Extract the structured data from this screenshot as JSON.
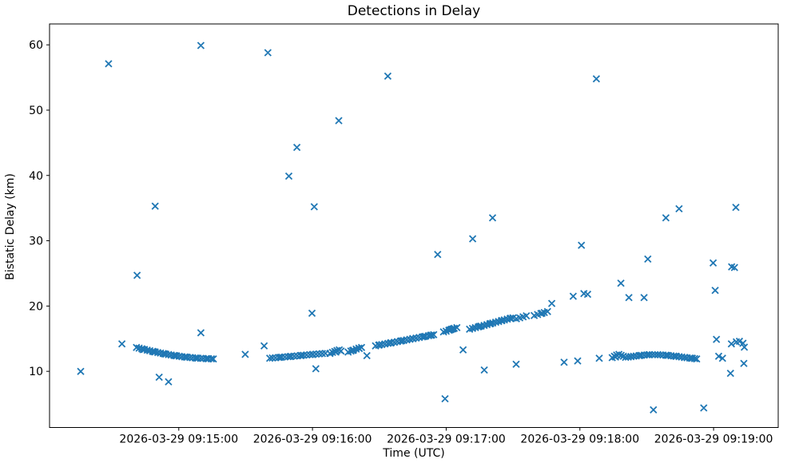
{
  "figure": {
    "title": "Detections in Delay",
    "xlabel": "Time (UTC)",
    "ylabel": "Bistatic Delay (km)"
  },
  "chart_data": {
    "type": "scatter",
    "title": "Detections in Delay",
    "xlabel": "Time (UTC)",
    "ylabel": "Bistatic Delay (km)",
    "marker": "x",
    "marker_color": "#1f77b4",
    "axis_color": "#000000",
    "grid": false,
    "legend": "none",
    "x_unit": "seconds after 2026-03-29 09:14:00 UTC",
    "xlim": [
      2,
      329
    ],
    "ylim": [
      1.4,
      63.2
    ],
    "x_ticks": [
      {
        "value": 60,
        "label": "2026-03-29 09:15:00"
      },
      {
        "value": 120,
        "label": "2026-03-29 09:16:00"
      },
      {
        "value": 180,
        "label": "2026-03-29 09:17:00"
      },
      {
        "value": 240,
        "label": "2026-03-29 09:18:00"
      },
      {
        "value": 300,
        "label": "2026-03-29 09:19:00"
      }
    ],
    "y_ticks": [
      10,
      20,
      30,
      40,
      50,
      60
    ],
    "points": [
      [
        16.0,
        10.0
      ],
      [
        28.5,
        57.1
      ],
      [
        34.5,
        14.2
      ],
      [
        41.0,
        13.65
      ],
      [
        42.2,
        13.55
      ],
      [
        43.4,
        13.45
      ],
      [
        44.0,
        13.32
      ],
      [
        44.6,
        13.35
      ],
      [
        45.8,
        13.25
      ],
      [
        47.0,
        13.15
      ],
      [
        48.2,
        13.06
      ],
      [
        48.8,
        13.0
      ],
      [
        49.4,
        12.97
      ],
      [
        50.6,
        12.88
      ],
      [
        51.8,
        12.8
      ],
      [
        53.0,
        12.72
      ],
      [
        53.6,
        12.68
      ],
      [
        54.2,
        12.64
      ],
      [
        55.4,
        12.57
      ],
      [
        56.6,
        12.5
      ],
      [
        57.8,
        12.43
      ],
      [
        58.4,
        12.4
      ],
      [
        59.0,
        12.37
      ],
      [
        60.2,
        12.31
      ],
      [
        61.4,
        12.26
      ],
      [
        62.6,
        12.21
      ],
      [
        63.2,
        12.18
      ],
      [
        63.8,
        12.16
      ],
      [
        65.0,
        12.12
      ],
      [
        66.2,
        12.08
      ],
      [
        67.4,
        12.05
      ],
      [
        68.0,
        12.03
      ],
      [
        68.6,
        12.02
      ],
      [
        69.8,
        11.99
      ],
      [
        71.0,
        11.97
      ],
      [
        72.2,
        11.95
      ],
      [
        72.8,
        11.94
      ],
      [
        73.4,
        11.93
      ],
      [
        74.6,
        11.92
      ],
      [
        75.5,
        11.9
      ],
      [
        41.3,
        24.7
      ],
      [
        49.4,
        35.3
      ],
      [
        51.2,
        9.1
      ],
      [
        55.4,
        8.4
      ],
      [
        69.9,
        59.9
      ],
      [
        69.9,
        15.9
      ],
      [
        89.8,
        12.6
      ],
      [
        98.3,
        13.9
      ],
      [
        100.0,
        58.8
      ],
      [
        100.8,
        12.0
      ],
      [
        102.0,
        12.05
      ],
      [
        103.4,
        12.09
      ],
      [
        104.8,
        12.13
      ],
      [
        105.5,
        12.15
      ],
      [
        106.2,
        12.17
      ],
      [
        107.6,
        12.21
      ],
      [
        109.0,
        12.25
      ],
      [
        110.0,
        12.27
      ],
      [
        110.4,
        12.29
      ],
      [
        111.8,
        12.33
      ],
      [
        113.2,
        12.38
      ],
      [
        114.6,
        12.42
      ],
      [
        115.0,
        12.44
      ],
      [
        116.0,
        12.46
      ],
      [
        117.4,
        12.51
      ],
      [
        118.8,
        12.55
      ],
      [
        120.0,
        12.58
      ],
      [
        120.2,
        12.6
      ],
      [
        121.6,
        12.64
      ],
      [
        123.0,
        12.68
      ],
      [
        124.4,
        12.72
      ],
      [
        125.8,
        12.76
      ],
      [
        109.4,
        39.9
      ],
      [
        113.0,
        44.3
      ],
      [
        119.8,
        18.9
      ],
      [
        120.8,
        35.2
      ],
      [
        121.5,
        10.4
      ],
      [
        127.8,
        12.75
      ],
      [
        129.0,
        12.9
      ],
      [
        130.0,
        13.05
      ],
      [
        130.5,
        12.95
      ],
      [
        131.0,
        13.2
      ],
      [
        132.0,
        13.3
      ],
      [
        132.8,
        13.1
      ],
      [
        131.8,
        48.4
      ],
      [
        136.0,
        12.95
      ],
      [
        137.2,
        13.1
      ],
      [
        138.0,
        13.2
      ],
      [
        138.4,
        13.25
      ],
      [
        139.6,
        13.4
      ],
      [
        140.8,
        13.55
      ],
      [
        141.0,
        13.5
      ],
      [
        142.0,
        13.65
      ],
      [
        144.4,
        12.4
      ],
      [
        148.3,
        13.9
      ],
      [
        149.7,
        14.0
      ],
      [
        150.0,
        14.05
      ],
      [
        151.1,
        14.1
      ],
      [
        152.5,
        14.19
      ],
      [
        153.9,
        14.28
      ],
      [
        155.0,
        14.35
      ],
      [
        155.3,
        14.37
      ],
      [
        156.7,
        14.46
      ],
      [
        158.1,
        14.55
      ],
      [
        159.5,
        14.64
      ],
      [
        160.0,
        14.68
      ],
      [
        160.9,
        14.73
      ],
      [
        162.3,
        14.82
      ],
      [
        163.7,
        14.91
      ],
      [
        165.0,
        15.02
      ],
      [
        165.1,
        15.0
      ],
      [
        166.5,
        15.09
      ],
      [
        167.9,
        15.18
      ],
      [
        169.3,
        15.27
      ],
      [
        170.0,
        15.33
      ],
      [
        170.7,
        15.37
      ],
      [
        172.1,
        15.46
      ],
      [
        173.0,
        15.52
      ],
      [
        173.5,
        15.55
      ],
      [
        174.4,
        15.62
      ],
      [
        153.8,
        55.2
      ],
      [
        176.2,
        27.9
      ],
      [
        179.5,
        5.8
      ],
      [
        178.8,
        16.05
      ],
      [
        180.0,
        16.15
      ],
      [
        181.2,
        16.3
      ],
      [
        181.8,
        16.35
      ],
      [
        182.4,
        16.45
      ],
      [
        183.0,
        16.5
      ],
      [
        183.6,
        16.6
      ],
      [
        184.8,
        16.7
      ],
      [
        187.6,
        13.3
      ],
      [
        191.9,
        30.3
      ],
      [
        190.5,
        16.45
      ],
      [
        191.8,
        16.57
      ],
      [
        193.1,
        16.69
      ],
      [
        194.4,
        16.81
      ],
      [
        195.0,
        16.9
      ],
      [
        195.7,
        16.93
      ],
      [
        197.0,
        17.04
      ],
      [
        198.3,
        17.16
      ],
      [
        199.6,
        17.28
      ],
      [
        200.0,
        17.33
      ],
      [
        200.9,
        17.4
      ],
      [
        202.2,
        17.52
      ],
      [
        203.5,
        17.63
      ],
      [
        204.8,
        17.75
      ],
      [
        205.0,
        17.78
      ],
      [
        206.1,
        17.87
      ],
      [
        207.4,
        17.99
      ],
      [
        208.7,
        18.1
      ],
      [
        209.0,
        18.14
      ],
      [
        210.0,
        18.2
      ],
      [
        197.1,
        10.2
      ],
      [
        200.8,
        33.5
      ],
      [
        211.5,
        18.05
      ],
      [
        213.0,
        18.2
      ],
      [
        214.5,
        18.35
      ],
      [
        216.0,
        18.5
      ],
      [
        219.5,
        18.55
      ],
      [
        221.0,
        18.7
      ],
      [
        222.5,
        18.85
      ],
      [
        223.0,
        18.9
      ],
      [
        224.0,
        19.0
      ],
      [
        225.5,
        19.15
      ],
      [
        211.4,
        11.1
      ],
      [
        227.4,
        20.4
      ],
      [
        232.9,
        11.4
      ],
      [
        237.0,
        21.5
      ],
      [
        239.0,
        11.6
      ],
      [
        240.7,
        29.3
      ],
      [
        241.8,
        21.9
      ],
      [
        243.5,
        21.8
      ],
      [
        247.4,
        54.8
      ],
      [
        248.7,
        12.0
      ],
      [
        254.5,
        12.1
      ],
      [
        255.5,
        12.3
      ],
      [
        256.0,
        12.2
      ],
      [
        256.5,
        12.5
      ],
      [
        257.5,
        12.6
      ],
      [
        258.5,
        12.45
      ],
      [
        259.5,
        12.3
      ],
      [
        260.5,
        12.15
      ],
      [
        261.7,
        12.2
      ],
      [
        262.9,
        12.25
      ],
      [
        263.0,
        12.27
      ],
      [
        264.1,
        12.3
      ],
      [
        265.3,
        12.35
      ],
      [
        266.5,
        12.4
      ],
      [
        267.0,
        12.43
      ],
      [
        267.7,
        12.45
      ],
      [
        268.9,
        12.5
      ],
      [
        270.1,
        12.53
      ],
      [
        271.0,
        12.54
      ],
      [
        271.3,
        12.55
      ],
      [
        272.5,
        12.56
      ],
      [
        273.7,
        12.56
      ],
      [
        274.9,
        12.55
      ],
      [
        275.0,
        12.54
      ],
      [
        276.1,
        12.53
      ],
      [
        277.3,
        12.5
      ],
      [
        278.5,
        12.47
      ],
      [
        279.0,
        12.45
      ],
      [
        279.7,
        12.43
      ],
      [
        280.9,
        12.39
      ],
      [
        282.1,
        12.34
      ],
      [
        283.0,
        12.31
      ],
      [
        283.3,
        12.29
      ],
      [
        284.5,
        12.24
      ],
      [
        285.7,
        12.19
      ],
      [
        286.9,
        12.14
      ],
      [
        287.0,
        12.13
      ],
      [
        288.1,
        12.09
      ],
      [
        289.3,
        12.04
      ],
      [
        290.0,
        12.01
      ],
      [
        290.5,
        12.0
      ],
      [
        291.5,
        11.95
      ],
      [
        292.4,
        11.9
      ],
      [
        258.4,
        23.5
      ],
      [
        262.0,
        21.3
      ],
      [
        268.8,
        21.3
      ],
      [
        270.5,
        27.2
      ],
      [
        273.0,
        4.1
      ],
      [
        278.6,
        33.5
      ],
      [
        284.5,
        34.9
      ],
      [
        295.6,
        4.4
      ],
      [
        299.8,
        26.6
      ],
      [
        300.7,
        22.4
      ],
      [
        301.3,
        14.9
      ],
      [
        302.3,
        12.3
      ],
      [
        304.0,
        12.0
      ],
      [
        307.6,
        9.7
      ],
      [
        308.0,
        14.2
      ],
      [
        308.1,
        26.0
      ],
      [
        309.4,
        25.9
      ],
      [
        310.0,
        35.1
      ],
      [
        310.2,
        14.5
      ],
      [
        311.6,
        14.6
      ],
      [
        313.2,
        14.3
      ],
      [
        313.6,
        11.2
      ],
      [
        313.8,
        13.7
      ]
    ]
  }
}
